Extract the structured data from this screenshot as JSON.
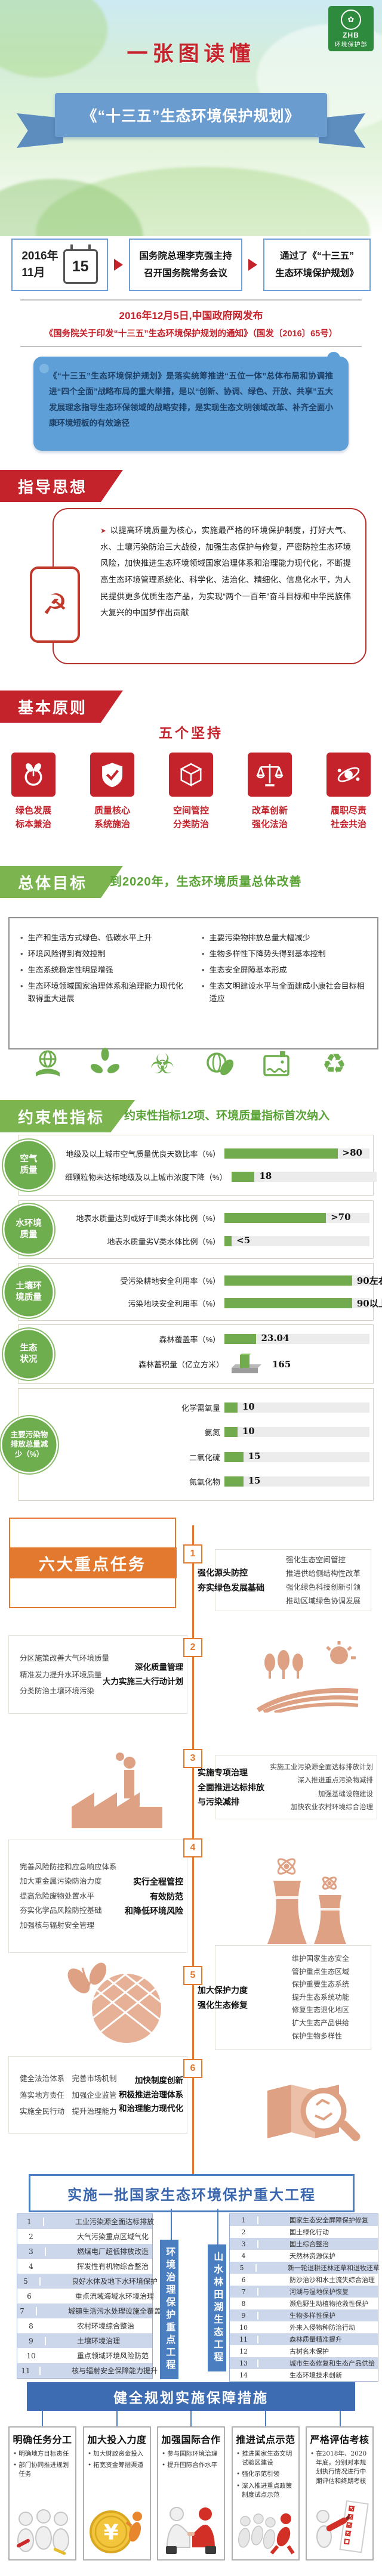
{
  "colors": {
    "red": "#c5232b",
    "green": "#6fae4e",
    "green_dark": "#5aa336",
    "blue": "#4a7ec0",
    "blue_light": "#5d9fd6",
    "orange": "#e2792e",
    "tan": "#dfa183"
  },
  "icons": {
    "party": "☭",
    "biohazard": "☣",
    "recycle": "♻",
    "bullet": "➤",
    "coin": "¥"
  },
  "header": {
    "tagline": "一张图读懂",
    "title": "《“十三五”生态环境保护规划》",
    "logo_abbr": "ZHB",
    "logo_org": "环境保护部"
  },
  "timeline": {
    "year": "2016年",
    "month": "11月",
    "day": "15",
    "step2_l1": "国务院总理李克强主持",
    "step2_l2": "召开国务院常务会议",
    "step3_l1": "通过了《“十三五”",
    "step3_l2": "生态环境保护规划》"
  },
  "announce": {
    "line1": "2016年12月5日,中国政府网发布",
    "line2": "《国务院关于印发“十三五”生态环境保护规划的通知》（国发〔2016〕65号）"
  },
  "intro": {
    "text": "《“十三五”生态环境保护规划》是落实统筹推进“五位一体”总体布局和协调推进“四个全面”战略布局的重大举措，是以“创新、协调、绿色、开放、共享”五大发展理念指导生态环保领域的战略安排，是实现生态文明领域改革、补齐全面小康环境短板的有效途径"
  },
  "guiding": {
    "title": "指导思想",
    "text": "以提高环境质量为核心，实施最严格的环境保护制度，打好大气、水、土壤污染防治三大战役，加强生态保护与修复，严密防控生态环境风险，加快推进生态环境领域国家治理体系和治理能力现代化，不断提高生态环境管理系统化、科学化、法治化、精细化、信息化水平，为人民提供更多优质生态产品，为实现“两个一百年”奋斗目标和中华民族伟大复兴的中国梦作出贡献"
  },
  "principles": {
    "title": "基本原则",
    "subtitle": "五个坚持",
    "items": [
      {
        "icon": "sprout-icon",
        "l1": "绿色发展",
        "l2": "标本兼治"
      },
      {
        "icon": "shield-check-icon",
        "l1": "质量核心",
        "l2": "系统施治"
      },
      {
        "icon": "cube-icon",
        "l1": "空间管控",
        "l2": "分类防治"
      },
      {
        "icon": "scales-icon",
        "l1": "改革创新",
        "l2": "强化法治"
      },
      {
        "icon": "orbit-icon",
        "l1": "履职尽责",
        "l2": "社会共治"
      }
    ]
  },
  "goal": {
    "title": "总体目标",
    "headline": "到2020年，生态环境质量总体改善",
    "bullets_left": [
      "生产和生活方式绿色、低碳水平上升",
      "环境风险得到有效控制",
      "生态系统稳定性明显增强",
      "生态环境领域国家治理体系和治理能力现代化取得重大进展"
    ],
    "bullets_right": [
      "主要污染物排放总量大幅减少",
      "生物多样性下降势头得到基本控制",
      "生态安全屏障基本形成",
      "生态文明建设水平与全面建成小康社会目标相适应"
    ]
  },
  "eco_icons": [
    "hand-globe-icon",
    "leaf-cycle-icon",
    "biohazard-icon",
    "globe-leaf-icon",
    "clean-water-icon",
    "recycle-icon"
  ],
  "indicators": {
    "title": "约束性指标",
    "subtitle": "约束性指标12项、环境质量指标首次纳入",
    "groups": [
      {
        "label1": "空气",
        "label2": "质量",
        "label3": "",
        "rows": [
          {
            "name": "地级及以上城市空气质量优良天数比率（%）",
            "value": ">80",
            "pct": 78
          },
          {
            "name": "细颗粒物未达标地级及以上城市浓度下降（%）",
            "value": "18",
            "pct": 16
          }
        ]
      },
      {
        "label1": "水环境",
        "label2": "质量",
        "label3": "",
        "rows": [
          {
            "name": "地表水质量达到或好于Ⅲ类水体比例（%）",
            "value": ">70",
            "pct": 70
          },
          {
            "name": "地表水质量劣Ⅴ类水体比例（%）",
            "value": "<5",
            "pct": 5
          }
        ]
      },
      {
        "label1": "土壤环",
        "label2": "境质量",
        "label3": "",
        "rows": [
          {
            "name": "受污染耕地安全利用率（%）",
            "value": "90左右",
            "pct": 88
          },
          {
            "name": "污染地块安全利用率（%）",
            "value": "90以上",
            "pct": 88
          }
        ]
      },
      {
        "label1": "生态",
        "label2": "状况",
        "label3": "",
        "rows": [
          {
            "name": "森林覆盖率（%）",
            "value": "23.04",
            "pct": 22
          },
          {
            "name": "森林蓄积量（亿立方米）",
            "value": "165",
            "pct": 0
          }
        ]
      },
      {
        "label1": "主要污染物",
        "label2": "排放总量减",
        "label3": "少（%）",
        "rows": [
          {
            "name": "化学需氧量",
            "value": "10",
            "pct": 9
          },
          {
            "name": "氨氮",
            "value": "10",
            "pct": 9
          },
          {
            "name": "二氧化硫",
            "value": "15",
            "pct": 13
          },
          {
            "name": "氮氧化物",
            "value": "15",
            "pct": 13
          }
        ]
      }
    ]
  },
  "tasks": {
    "title": "六大重点任务",
    "items": [
      {
        "num": "1",
        "label": [
          "强化源头防控",
          "夯实绿色发展基础"
        ],
        "list": [
          "强化生态空间管控",
          "推进供给侧结构性改革",
          "强化绿色科技创新引领",
          "推动区域绿色协调发展"
        ],
        "icon": ""
      },
      {
        "num": "2",
        "label": [
          "深化质量管理",
          "大力实施三大行动计划"
        ],
        "list": [
          "分区施策改善大气环境质量",
          "精准发力提升水环境质量",
          "分类防治土壤环境污染"
        ],
        "icon": "farm-field-icon"
      },
      {
        "num": "3",
        "label": [
          "实施专项治理",
          "全面推进达标排放",
          "与污染减排"
        ],
        "list": [
          "实施工业污染源全面达标排放计划",
          "深入推进重点污染物减排",
          "加强基础设施建设",
          "加快农业农村环境综合治理"
        ],
        "icon": "factory-icon"
      },
      {
        "num": "4",
        "label": [
          "实行全程管控",
          "有效防范",
          "和降低环境风险"
        ],
        "list": [
          "完善风险防控和应急响应体系",
          "加大重金属污染防治力度",
          "提高危险废物处置水平",
          "夯实化学品风险防控基础",
          "加强核与辐射安全管理"
        ],
        "icon": "nuclear-towers-icon"
      },
      {
        "num": "5",
        "label": [
          "加大保护力度",
          "强化生态修复"
        ],
        "list": [
          "维护国家生态安全",
          "管护重点生态区域",
          "保护重要生态系统",
          "提升生态系统功能",
          "修复生态退化地区",
          "扩大生态产品供给",
          "保护生物多样性"
        ],
        "icon": "butterfly-globe-icon"
      },
      {
        "num": "6",
        "label": [
          "加快制度创新",
          "积极推进治理体系",
          "和治理能力现代化"
        ],
        "list": [
          "健全法治体系　完善市场机制",
          "落实地方责任　加强企业监管",
          "实施全民行动　提升治理能力"
        ],
        "icon": "map-magnifier-icon"
      }
    ]
  },
  "projects": {
    "banner": "实施一批国家生态环境保护重大工程",
    "left_label": "环境治理保护重点工程",
    "right_label": "山水林田湖生态工程",
    "left_rows": [
      {
        "n": "1",
        "t": "工业污染源全面达标排放"
      },
      {
        "n": "2",
        "t": "大气污染重点区域气化"
      },
      {
        "n": "3",
        "t": "燃煤电厂超低排放改造"
      },
      {
        "n": "4",
        "t": "挥发性有机物综合整治"
      },
      {
        "n": "5",
        "t": "良好水体及地下水环境保护"
      },
      {
        "n": "6",
        "t": "重点流域海域水环境治理"
      },
      {
        "n": "7",
        "t": "城镇生活污水处理设施全覆盖"
      },
      {
        "n": "8",
        "t": "农村环境综合整治"
      },
      {
        "n": "9",
        "t": "土壤环境治理"
      },
      {
        "n": "10",
        "t": "重点领域环境风险防范"
      },
      {
        "n": "11",
        "t": "核与辐射安全保障能力提升"
      }
    ],
    "right_rows": [
      {
        "n": "1",
        "t": "国家生态安全屏障保护修复"
      },
      {
        "n": "2",
        "t": "国土绿化行动"
      },
      {
        "n": "3",
        "t": "国土综合整治"
      },
      {
        "n": "4",
        "t": "天然林资源保护"
      },
      {
        "n": "5",
        "t": "新一轮退耕还林还草和退牧还草"
      },
      {
        "n": "6",
        "t": "防沙治沙和水土流失综合治理"
      },
      {
        "n": "7",
        "t": "河湖与湿地保护恢复"
      },
      {
        "n": "8",
        "t": "濒危野生动植物抢救性保护"
      },
      {
        "n": "9",
        "t": "生物多样性保护"
      },
      {
        "n": "10",
        "t": "外来入侵物种防治行动"
      },
      {
        "n": "11",
        "t": "森林质量精准提升"
      },
      {
        "n": "12",
        "t": "古树名木保护"
      },
      {
        "n": "13",
        "t": "城市生态修复和生态产品供给"
      },
      {
        "n": "14",
        "t": "生态环境技术创新"
      }
    ]
  },
  "safeguards": {
    "banner": "健全规划实施保障措施",
    "columns": [
      {
        "title": "明确任务分工",
        "icon": "workers-icon",
        "bullets": [
          "明确地方目标责任",
          "部门协同推进规划任务"
        ]
      },
      {
        "title": "加大投入力度",
        "icon": "coin-icon",
        "bullets": [
          "加大财政资金投入",
          "拓宽资金筹措渠道"
        ]
      },
      {
        "title": "加强国际合作",
        "icon": "handshake-icon",
        "bullets": [
          "参与国际环境治理",
          "提升国际合作水平"
        ]
      },
      {
        "title": "推进试点示范",
        "icon": "runners-icon",
        "bullets": [
          "推进国家生态文明试验区建设",
          "强化示范引领",
          "深入推进重点政策制度试点示范"
        ]
      },
      {
        "title": "严格评估考核",
        "icon": "checklist-icon",
        "bullets": [
          "在2018年、2020年底，分别对本规划执行情况进行中期评估和终期考核"
        ]
      }
    ]
  }
}
